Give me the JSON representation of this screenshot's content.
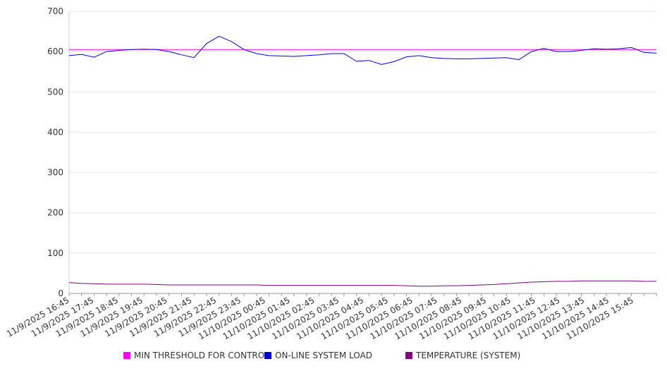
{
  "chart_data": {
    "type": "line",
    "title": "",
    "xlabel": "",
    "ylabel": "",
    "ylim": [
      0,
      700
    ],
    "yticks": [
      0,
      100,
      200,
      300,
      400,
      500,
      600,
      700
    ],
    "grid": true,
    "legend_position": "bottom",
    "x_tick_labels": [
      "11/9/2025 16:45",
      "11/9/2025 17:45",
      "11/9/2025 18:45",
      "11/9/2025 19:45",
      "11/9/2025 20:45",
      "11/9/2025 21:45",
      "11/9/2025 22:45",
      "11/9/2025 23:45",
      "11/10/2025 00:45",
      "11/10/2025 01:45",
      "11/10/2025 02:45",
      "11/10/2025 03:45",
      "11/10/2025 04:45",
      "11/10/2025 05:45",
      "11/10/2025 06:45",
      "11/10/2025 07:45",
      "11/10/2025 08:45",
      "11/10/2025 09:45",
      "11/10/2025 10:45",
      "11/10/2025 11:45",
      "11/10/2025 12:45",
      "11/10/2025 13:45",
      "11/10/2025 14:45",
      "11/10/2025 15:45"
    ],
    "x": [
      "11/9/2025 16:45",
      "11/9/2025 17:15",
      "11/9/2025 17:45",
      "11/9/2025 18:15",
      "11/9/2025 18:45",
      "11/9/2025 19:15",
      "11/9/2025 19:45",
      "11/9/2025 20:15",
      "11/9/2025 20:45",
      "11/9/2025 21:15",
      "11/9/2025 21:45",
      "11/9/2025 22:15",
      "11/9/2025 22:45",
      "11/9/2025 23:15",
      "11/9/2025 23:45",
      "11/10/2025 00:15",
      "11/10/2025 00:45",
      "11/10/2025 01:15",
      "11/10/2025 01:45",
      "11/10/2025 02:15",
      "11/10/2025 02:45",
      "11/10/2025 03:15",
      "11/10/2025 03:45",
      "11/10/2025 04:15",
      "11/10/2025 04:45",
      "11/10/2025 05:15",
      "11/10/2025 05:45",
      "11/10/2025 06:15",
      "11/10/2025 06:45",
      "11/10/2025 07:15",
      "11/10/2025 07:45",
      "11/10/2025 08:15",
      "11/10/2025 08:45",
      "11/10/2025 09:15",
      "11/10/2025 09:45",
      "11/10/2025 10:15",
      "11/10/2025 10:45",
      "11/10/2025 11:15",
      "11/10/2025 11:45",
      "11/10/2025 12:15",
      "11/10/2025 12:45",
      "11/10/2025 13:15",
      "11/10/2025 13:45",
      "11/10/2025 14:15",
      "11/10/2025 14:45",
      "11/10/2025 15:15",
      "11/10/2025 15:45",
      "11/10/2025 16:15"
    ],
    "series": [
      {
        "name": "MIN THRESHOLD FOR CONTROL",
        "color": "#ff00ff",
        "values": [
          605,
          605,
          605,
          605,
          605,
          605,
          605,
          605,
          605,
          605,
          605,
          605,
          605,
          605,
          605,
          605,
          605,
          605,
          605,
          605,
          605,
          605,
          605,
          605,
          605,
          605,
          605,
          605,
          605,
          605,
          605,
          605,
          605,
          605,
          605,
          605,
          605,
          605,
          605,
          605,
          605,
          605,
          605,
          605,
          605,
          605,
          605,
          605
        ]
      },
      {
        "name": "ON-LINE SYSTEM LOAD",
        "color": "#0000dd",
        "values": [
          590,
          593,
          586,
          600,
          603,
          605,
          606,
          605,
          600,
          592,
          585,
          620,
          638,
          625,
          605,
          595,
          590,
          589,
          588,
          590,
          592,
          595,
          595,
          576,
          578,
          568,
          575,
          587,
          590,
          585,
          583,
          582,
          582,
          583,
          584,
          585,
          580,
          600,
          608,
          600,
          600,
          603,
          607,
          606,
          607,
          610,
          598,
          596
        ]
      },
      {
        "name": "TEMPERATURE (SYSTEM)",
        "color": "#800080",
        "values": [
          27,
          25,
          24,
          23,
          23,
          23,
          23,
          22,
          21,
          21,
          21,
          21,
          21,
          21,
          21,
          21,
          20,
          20,
          20,
          20,
          20,
          20,
          20,
          20,
          20,
          20,
          20,
          19,
          18,
          18,
          19,
          19,
          20,
          21,
          22,
          24,
          26,
          28,
          29,
          30,
          30,
          31,
          31,
          31,
          31,
          31,
          30,
          30
        ]
      }
    ]
  }
}
